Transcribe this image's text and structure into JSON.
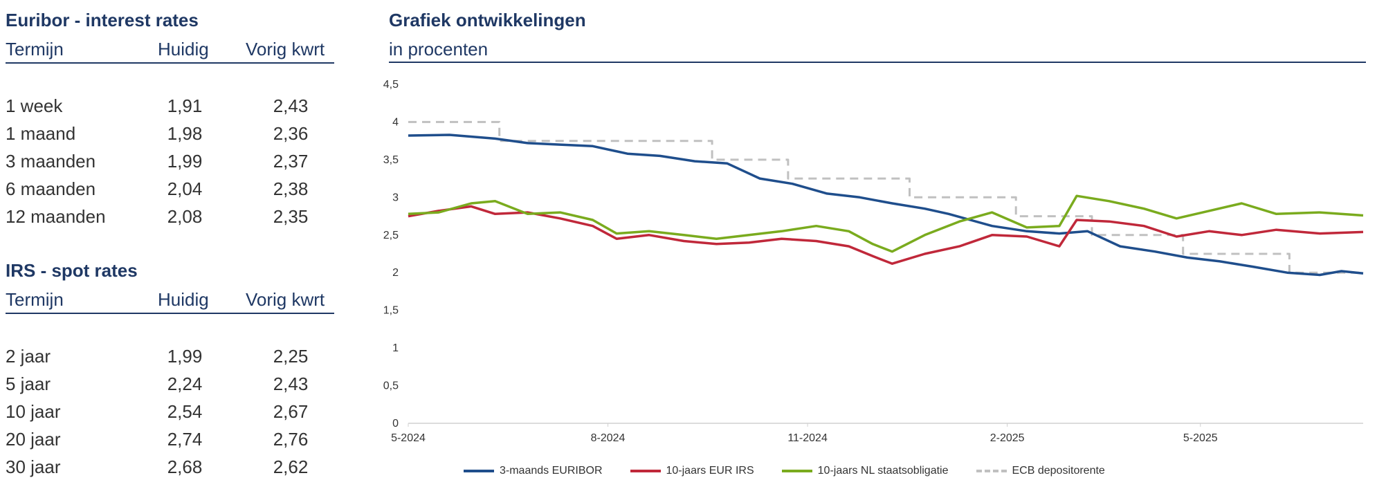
{
  "euribor": {
    "title": "Euribor - interest rates",
    "col_term": "Termijn",
    "col_current": "Huidig",
    "col_prev": "Vorig kwrt",
    "rows": [
      {
        "term": "1 week",
        "current": "1,91",
        "prev": "2,43"
      },
      {
        "term": "1 maand",
        "current": "1,98",
        "prev": "2,36"
      },
      {
        "term": "3 maanden",
        "current": "1,99",
        "prev": "2,37"
      },
      {
        "term": "6 maanden",
        "current": "2,04",
        "prev": "2,38"
      },
      {
        "term": "12 maanden",
        "current": "2,08",
        "prev": "2,35"
      }
    ]
  },
  "irs": {
    "title": "IRS - spot rates",
    "col_term": "Termijn",
    "col_current": "Huidig",
    "col_prev": "Vorig kwrt",
    "rows": [
      {
        "term": "2 jaar",
        "current": "1,99",
        "prev": "2,25"
      },
      {
        "term": "5 jaar",
        "current": "2,24",
        "prev": "2,43"
      },
      {
        "term": "10 jaar",
        "current": "2,54",
        "prev": "2,67"
      },
      {
        "term": "20 jaar",
        "current": "2,74",
        "prev": "2,76"
      },
      {
        "term": "30 jaar",
        "current": "2,68",
        "prev": "2,62"
      }
    ]
  },
  "chart_header": {
    "title": "Grafiek ontwikkelingen",
    "subtitle": "in procenten"
  },
  "chart_data": {
    "type": "line",
    "title": "Grafiek ontwikkelingen",
    "subtitle": "in procenten",
    "xlabel": "",
    "ylabel": "",
    "ylim": [
      0,
      4.5
    ],
    "yticks": [
      "0",
      "0,5",
      "1",
      "1,5",
      "2",
      "2,5",
      "3",
      "3,5",
      "4",
      "4,5"
    ],
    "xlim": [
      "2024-05-01",
      "2025-07-15"
    ],
    "xticks": [
      {
        "date": "2024-05-01",
        "label": "5-2024"
      },
      {
        "date": "2024-08-01",
        "label": "8-2024"
      },
      {
        "date": "2024-11-01",
        "label": "11-2024"
      },
      {
        "date": "2025-02-01",
        "label": "2-2025"
      },
      {
        "date": "2025-05-01",
        "label": "5-2025"
      }
    ],
    "grid": false,
    "legend_position": "bottom",
    "series": [
      {
        "name": "3-maands EURIBOR",
        "color": "#1f4e8c",
        "style": "solid",
        "points": [
          [
            "2024-05-01",
            3.82
          ],
          [
            "2024-05-20",
            3.83
          ],
          [
            "2024-06-10",
            3.78
          ],
          [
            "2024-06-25",
            3.72
          ],
          [
            "2024-07-10",
            3.7
          ],
          [
            "2024-07-25",
            3.68
          ],
          [
            "2024-08-10",
            3.58
          ],
          [
            "2024-08-25",
            3.55
          ],
          [
            "2024-09-10",
            3.48
          ],
          [
            "2024-09-25",
            3.45
          ],
          [
            "2024-10-10",
            3.25
          ],
          [
            "2024-10-25",
            3.18
          ],
          [
            "2024-11-10",
            3.05
          ],
          [
            "2024-11-25",
            3.0
          ],
          [
            "2024-12-10",
            2.92
          ],
          [
            "2024-12-25",
            2.85
          ],
          [
            "2025-01-05",
            2.78
          ],
          [
            "2025-01-15",
            2.7
          ],
          [
            "2025-01-25",
            2.62
          ],
          [
            "2025-02-10",
            2.55
          ],
          [
            "2025-02-25",
            2.52
          ],
          [
            "2025-03-10",
            2.55
          ],
          [
            "2025-03-25",
            2.35
          ],
          [
            "2025-04-10",
            2.28
          ],
          [
            "2025-04-25",
            2.2
          ],
          [
            "2025-05-10",
            2.15
          ],
          [
            "2025-05-25",
            2.08
          ],
          [
            "2025-06-10",
            2.0
          ],
          [
            "2025-06-25",
            1.97
          ],
          [
            "2025-07-05",
            2.02
          ],
          [
            "2025-07-15",
            1.99
          ]
        ]
      },
      {
        "name": "10-jaars EUR IRS",
        "color": "#c0283a",
        "style": "solid",
        "points": [
          [
            "2024-05-01",
            2.75
          ],
          [
            "2024-05-15",
            2.82
          ],
          [
            "2024-05-30",
            2.88
          ],
          [
            "2024-06-10",
            2.78
          ],
          [
            "2024-06-25",
            2.8
          ],
          [
            "2024-07-10",
            2.72
          ],
          [
            "2024-07-25",
            2.62
          ],
          [
            "2024-08-05",
            2.45
          ],
          [
            "2024-08-20",
            2.5
          ],
          [
            "2024-09-05",
            2.42
          ],
          [
            "2024-09-20",
            2.38
          ],
          [
            "2024-10-05",
            2.4
          ],
          [
            "2024-10-20",
            2.45
          ],
          [
            "2024-11-05",
            2.42
          ],
          [
            "2024-11-20",
            2.35
          ],
          [
            "2024-12-01",
            2.22
          ],
          [
            "2024-12-10",
            2.12
          ],
          [
            "2024-12-25",
            2.25
          ],
          [
            "2025-01-10",
            2.35
          ],
          [
            "2025-01-25",
            2.5
          ],
          [
            "2025-02-10",
            2.48
          ],
          [
            "2025-02-25",
            2.35
          ],
          [
            "2025-03-05",
            2.7
          ],
          [
            "2025-03-20",
            2.68
          ],
          [
            "2025-04-05",
            2.62
          ],
          [
            "2025-04-20",
            2.48
          ],
          [
            "2025-05-05",
            2.55
          ],
          [
            "2025-05-20",
            2.5
          ],
          [
            "2025-06-05",
            2.57
          ],
          [
            "2025-06-25",
            2.52
          ],
          [
            "2025-07-15",
            2.54
          ]
        ]
      },
      {
        "name": "10-jaars NL staatsobligatie",
        "color": "#7aab1e",
        "style": "solid",
        "points": [
          [
            "2024-05-01",
            2.78
          ],
          [
            "2024-05-15",
            2.8
          ],
          [
            "2024-05-30",
            2.92
          ],
          [
            "2024-06-10",
            2.95
          ],
          [
            "2024-06-25",
            2.78
          ],
          [
            "2024-07-10",
            2.8
          ],
          [
            "2024-07-25",
            2.7
          ],
          [
            "2024-08-05",
            2.52
          ],
          [
            "2024-08-20",
            2.55
          ],
          [
            "2024-09-05",
            2.5
          ],
          [
            "2024-09-20",
            2.45
          ],
          [
            "2024-10-05",
            2.5
          ],
          [
            "2024-10-20",
            2.55
          ],
          [
            "2024-11-05",
            2.62
          ],
          [
            "2024-11-20",
            2.55
          ],
          [
            "2024-12-01",
            2.38
          ],
          [
            "2024-12-10",
            2.28
          ],
          [
            "2024-12-25",
            2.5
          ],
          [
            "2025-01-10",
            2.68
          ],
          [
            "2025-01-25",
            2.8
          ],
          [
            "2025-02-10",
            2.6
          ],
          [
            "2025-02-25",
            2.62
          ],
          [
            "2025-03-05",
            3.02
          ],
          [
            "2025-03-20",
            2.95
          ],
          [
            "2025-04-05",
            2.85
          ],
          [
            "2025-04-20",
            2.72
          ],
          [
            "2025-05-05",
            2.82
          ],
          [
            "2025-05-20",
            2.92
          ],
          [
            "2025-06-05",
            2.78
          ],
          [
            "2025-06-25",
            2.8
          ],
          [
            "2025-07-15",
            2.76
          ]
        ]
      },
      {
        "name": "ECB depositorente",
        "color": "#c0c0c0",
        "style": "dashed",
        "points": [
          [
            "2024-05-01",
            4.0
          ],
          [
            "2024-06-12",
            4.0
          ],
          [
            "2024-06-12",
            3.75
          ],
          [
            "2024-09-18",
            3.75
          ],
          [
            "2024-09-18",
            3.5
          ],
          [
            "2024-10-23",
            3.5
          ],
          [
            "2024-10-23",
            3.25
          ],
          [
            "2024-12-18",
            3.25
          ],
          [
            "2024-12-18",
            3.0
          ],
          [
            "2025-02-05",
            3.0
          ],
          [
            "2025-02-05",
            2.75
          ],
          [
            "2025-03-12",
            2.75
          ],
          [
            "2025-03-12",
            2.5
          ],
          [
            "2025-04-23",
            2.5
          ],
          [
            "2025-04-23",
            2.25
          ],
          [
            "2025-06-11",
            2.25
          ],
          [
            "2025-06-11",
            2.0
          ],
          [
            "2025-07-15",
            2.0
          ]
        ]
      }
    ]
  }
}
